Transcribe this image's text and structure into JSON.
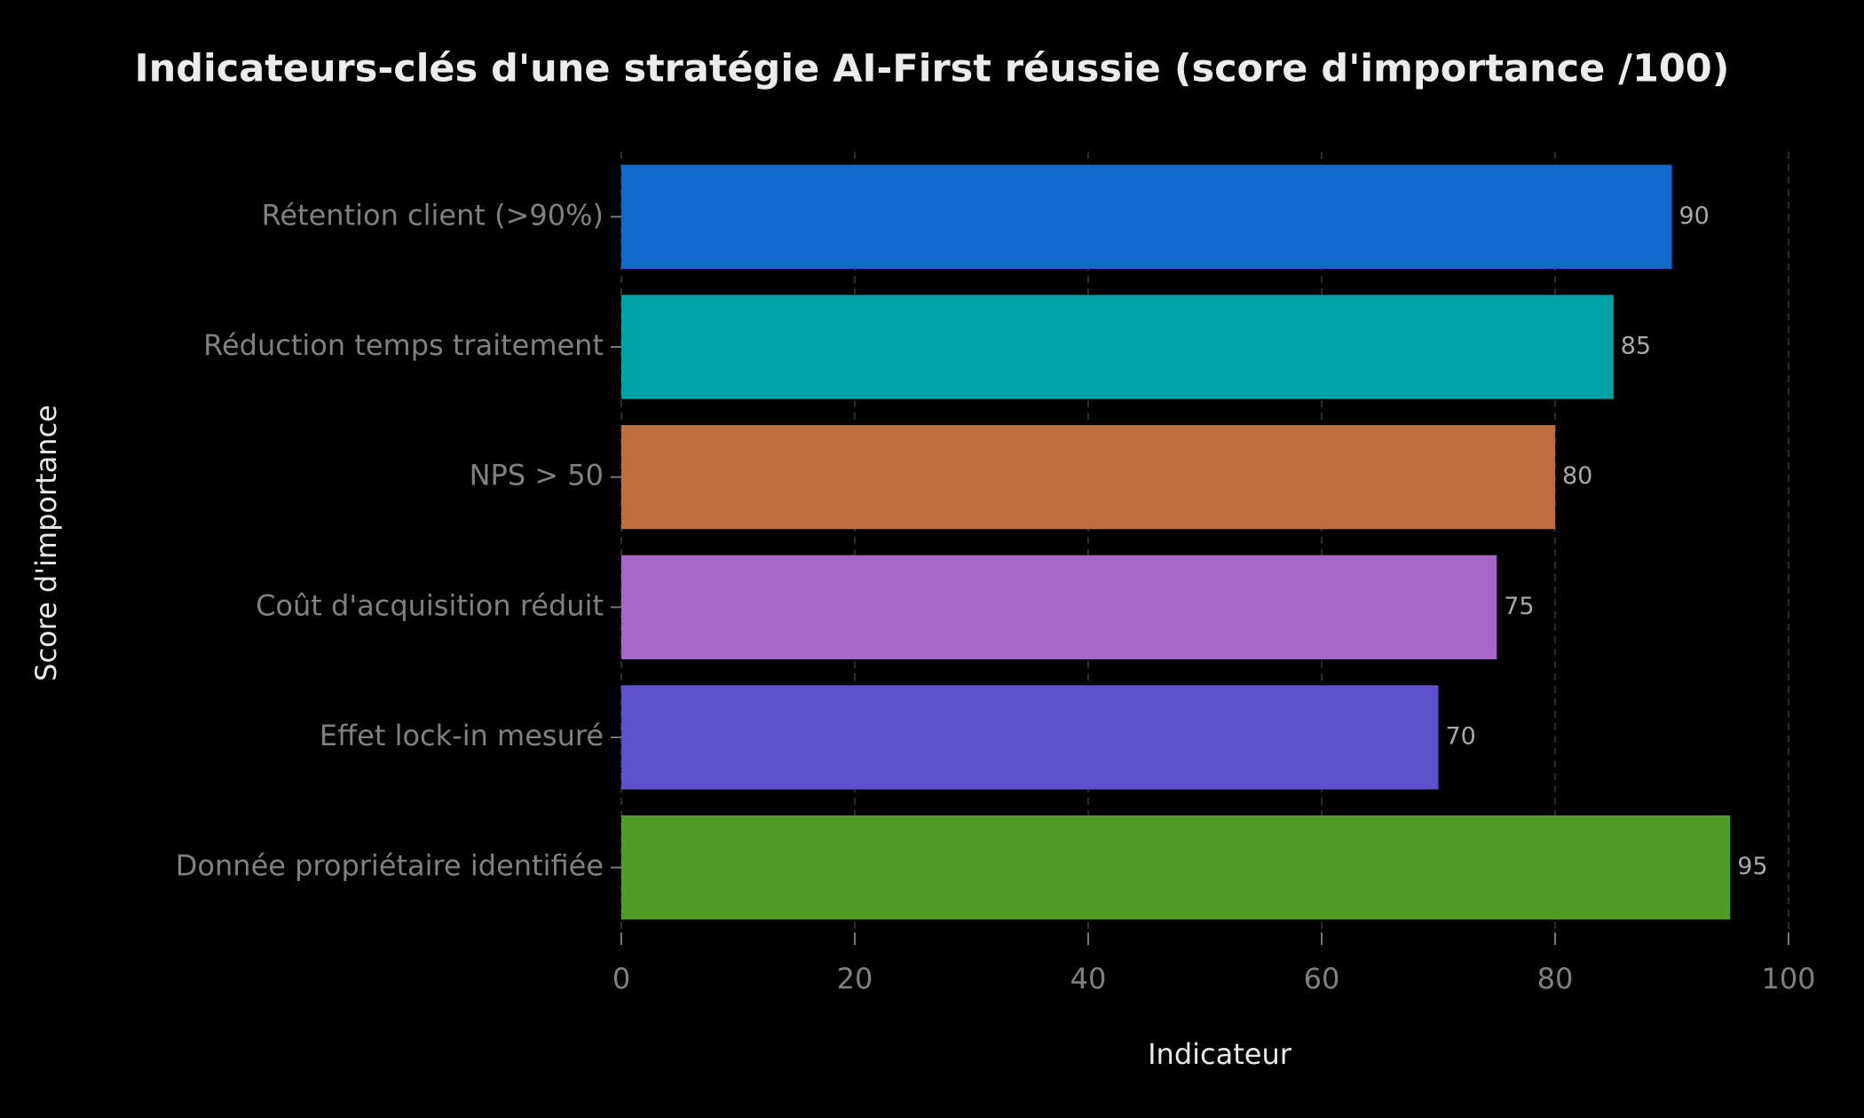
{
  "chart_data": {
    "type": "barh",
    "title": "Indicateurs-clés d'une stratégie AI-First réussie (score d'importance /100)",
    "x_label": "Indicateur",
    "y_label": "Score d'importance",
    "categories": [
      "Rétention client (>90%)",
      "Réduction temps traitement",
      "NPS > 50",
      "Coût d'acquisition réduit",
      "Effet lock-in mesuré",
      "Donnée propriétaire identifiée"
    ],
    "values": [
      90,
      85,
      80,
      75,
      70,
      95
    ],
    "colors": [
      "#1269cc",
      "#00a3a3",
      "#c06e3f",
      "#a667c9",
      "#5f51cc",
      "#4e9b26"
    ],
    "xlim": [
      0,
      100
    ],
    "xticks": [
      0,
      20,
      40,
      60,
      80,
      100
    ],
    "grid": true
  }
}
